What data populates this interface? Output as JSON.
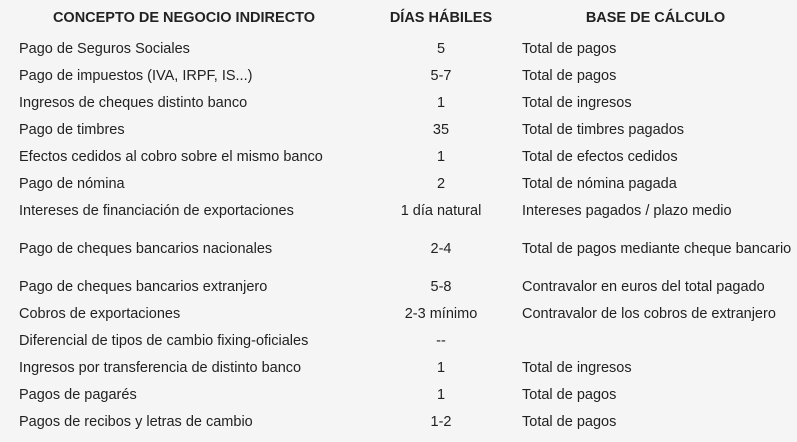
{
  "table": {
    "headers": [
      "CONCEPTO DE NEGOCIO INDIRECTO",
      "DÍAS HÁBILES",
      "BASE DE CÁLCULO"
    ],
    "rows": [
      {
        "concept": "Pago de Seguros Sociales",
        "days": "5",
        "base": "Total de pagos"
      },
      {
        "concept": "Pago de impuestos (IVA, IRPF, IS...)",
        "days": "5-7",
        "base": "Total de pagos"
      },
      {
        "concept": "Ingresos de cheques distinto banco",
        "days": "1",
        "base": "Total de ingresos"
      },
      {
        "concept": "Pago de timbres",
        "days": "35",
        "base": "Total de timbres pagados"
      },
      {
        "concept": "Efectos cedidos al cobro sobre el mismo banco",
        "days": "1",
        "base": "Total de efectos cedidos"
      },
      {
        "concept": "Pago de nómina",
        "days": "2",
        "base": "Total de nómina pagada"
      },
      {
        "concept": "Intereses de financiación de exportaciones",
        "days": "1 día natural",
        "base": "Intereses pagados / plazo medio"
      },
      {
        "concept": "Pago de cheques bancarios nacionales",
        "days": "2-4",
        "base": "Total de pagos mediante cheque bancario"
      },
      {
        "concept": "Pago de cheques bancarios extranjero",
        "days": "5-8",
        "base": "Contravalor en euros del total pagado"
      },
      {
        "concept": "Cobros de exportaciones",
        "days": "2-3 mínimo",
        "base": "Contravalor de los cobros de extranjero"
      },
      {
        "concept": "Diferencial de tipos de cambio fixing-oficiales",
        "days": "--",
        "base": ""
      },
      {
        "concept": "Ingresos por transferencia de distinto banco",
        "days": "1",
        "base": "Total de ingresos"
      },
      {
        "concept": "Pagos de pagarés",
        "days": "1",
        "base": "Total de pagos"
      },
      {
        "concept": "Pagos de recibos y letras de cambio",
        "days": "1-2",
        "base": "Total de pagos"
      }
    ]
  }
}
